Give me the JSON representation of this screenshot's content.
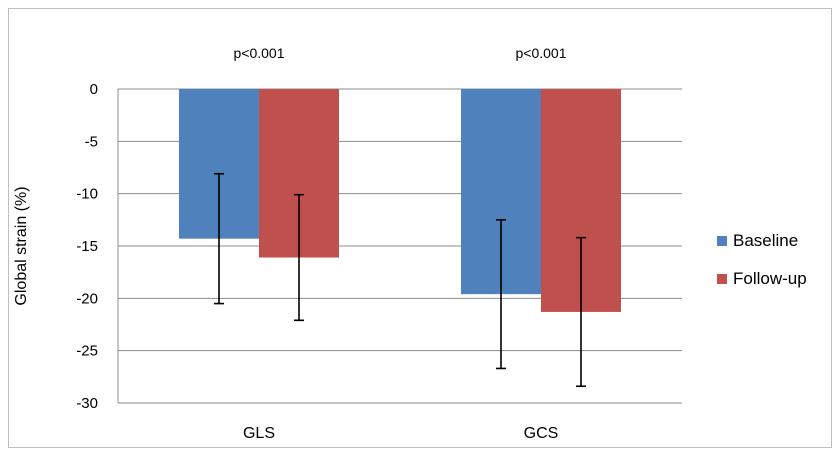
{
  "chart_data": {
    "type": "bar",
    "categories": [
      "GLS",
      "GCS"
    ],
    "series": [
      {
        "name": "Baseline",
        "values": [
          -14.3,
          -19.6
        ],
        "error": [
          6.2,
          7.1
        ],
        "color": "#4f81bd"
      },
      {
        "name": "Follow-up",
        "values": [
          -16.1,
          -21.3
        ],
        "error": [
          6.0,
          7.1
        ],
        "color": "#c0504d"
      }
    ],
    "annotations": [
      "p<0.001",
      "p<0.001"
    ],
    "xlabel": "",
    "ylabel": "Global strain (%)",
    "ylim": [
      -30,
      0
    ],
    "yticks": [
      0,
      -5,
      -10,
      -15,
      -20,
      -25,
      -30
    ],
    "grid": true,
    "legend_position": "right"
  }
}
